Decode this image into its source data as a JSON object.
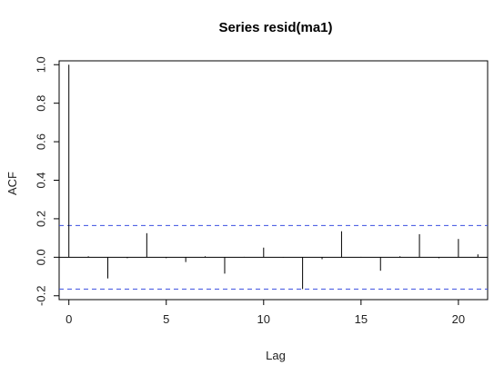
{
  "chart_data": {
    "type": "bar",
    "title": "Series  resid(ma1)",
    "xlabel": "Lag",
    "ylabel": "ACF",
    "xlim": [
      -0.5,
      21.5
    ],
    "ylim": [
      -0.22,
      1.02
    ],
    "x_ticks": [
      0,
      5,
      10,
      15,
      20
    ],
    "y_ticks": [
      -0.2,
      0.0,
      0.2,
      0.4,
      0.6,
      0.8,
      1.0
    ],
    "x_tick_labels": [
      "0",
      "5",
      "10",
      "15",
      "20"
    ],
    "y_tick_labels": [
      "-0.2",
      "0.0",
      "0.2",
      "0.4",
      "0.6",
      "0.8",
      "1.0"
    ],
    "lags": [
      0,
      1,
      2,
      3,
      4,
      5,
      6,
      7,
      8,
      9,
      10,
      11,
      12,
      13,
      14,
      15,
      16,
      17,
      18,
      19,
      20,
      21
    ],
    "acf": [
      1.0,
      0.005,
      -0.11,
      -0.005,
      0.125,
      -0.005,
      -0.025,
      0.005,
      -0.085,
      0.002,
      0.05,
      -0.002,
      -0.165,
      -0.01,
      0.135,
      0.002,
      -0.07,
      0.005,
      0.12,
      -0.005,
      0.095,
      0.015
    ],
    "confidence_bounds": [
      0.165,
      -0.165
    ],
    "grid": false,
    "colors": {
      "bars": "#000000",
      "confidence": "#3b4fe0",
      "axis": "#000000"
    }
  }
}
